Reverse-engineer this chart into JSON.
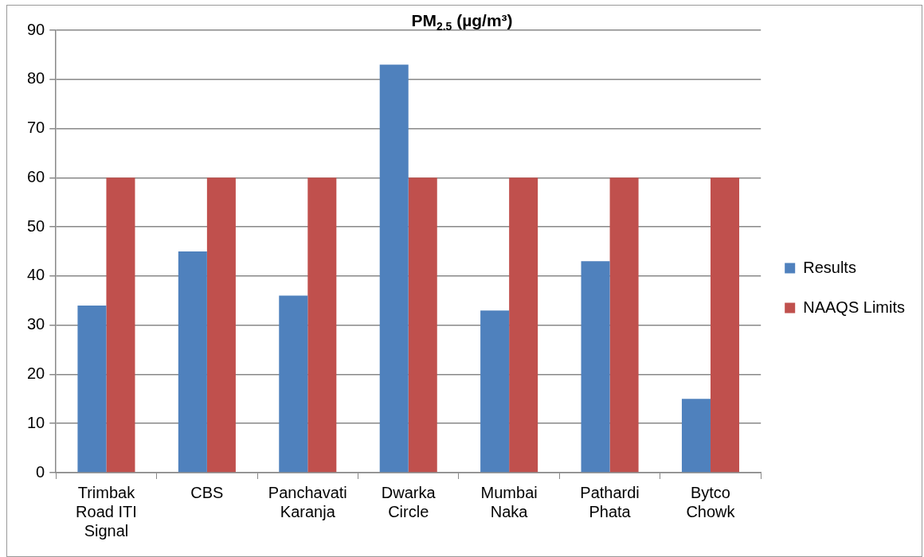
{
  "chart_data": {
    "type": "bar",
    "title": "PM$_{2.5}$ (µg/m³)",
    "categories": [
      "Trimbak Road ITI Signal",
      "CBS",
      "Panchavati Karanja",
      "Dwarka Circle",
      "Mumbai Naka",
      "Pathardi Phata",
      "Bytco Chowk"
    ],
    "series": [
      {
        "name": "Results",
        "color": "#4f81bd",
        "values": [
          34,
          45,
          36,
          83,
          33,
          43,
          15
        ]
      },
      {
        "name": "NAAQS Limits",
        "color": "#c0504d",
        "values": [
          60,
          60,
          60,
          60,
          60,
          60,
          60
        ]
      }
    ],
    "ylim": [
      0,
      90
    ],
    "yticks": [
      0,
      10,
      20,
      30,
      40,
      50,
      60,
      70,
      80,
      90
    ],
    "grid": "y",
    "legend": "right"
  }
}
